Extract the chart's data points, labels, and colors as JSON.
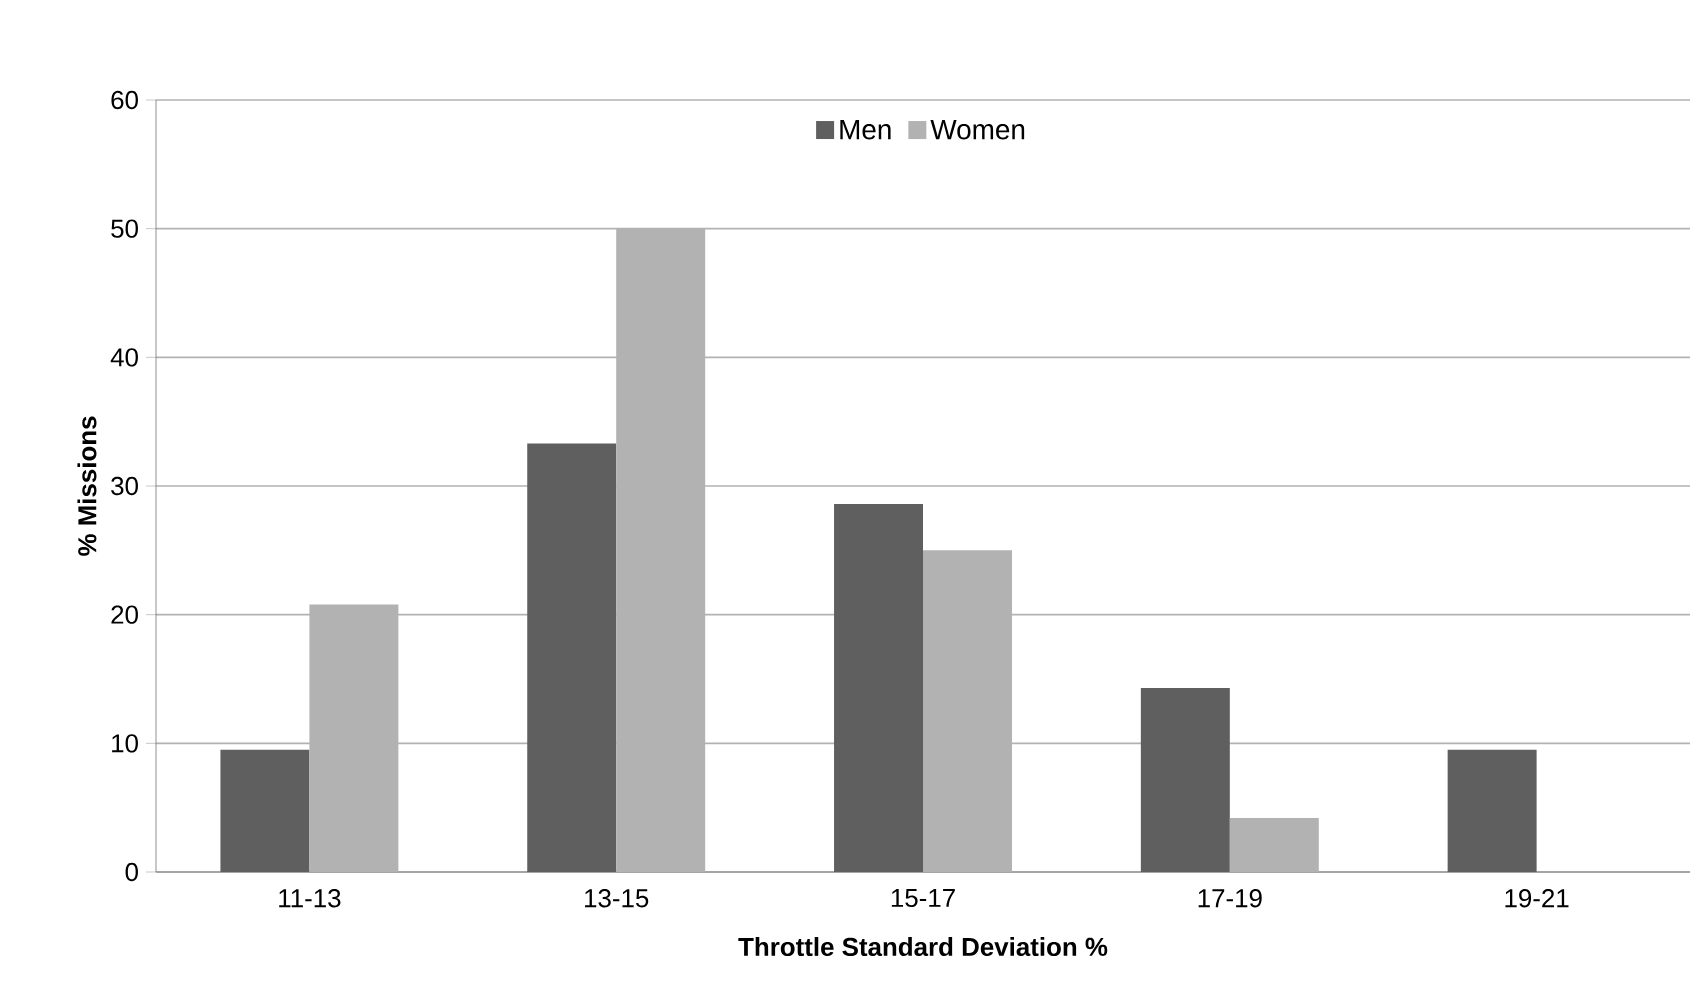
{
  "chart_data": {
    "type": "bar",
    "xlabel": "Throttle Standard Deviation %",
    "ylabel": "% Missions",
    "categories": [
      "11-13",
      "13-15",
      "15-17",
      "17-19",
      "19-21"
    ],
    "series": [
      {
        "name": "Men",
        "color": "#5f5f5f",
        "values": [
          9.5,
          33.3,
          28.6,
          14.3,
          9.5
        ]
      },
      {
        "name": "Women",
        "color": "#b2b2b2",
        "values": [
          20.8,
          50,
          25,
          4.2,
          0
        ]
      }
    ],
    "ylim": [
      0,
      60
    ],
    "yticks": [
      0,
      10,
      20,
      30,
      40,
      50,
      60
    ],
    "grid": "y",
    "legend": "top"
  }
}
